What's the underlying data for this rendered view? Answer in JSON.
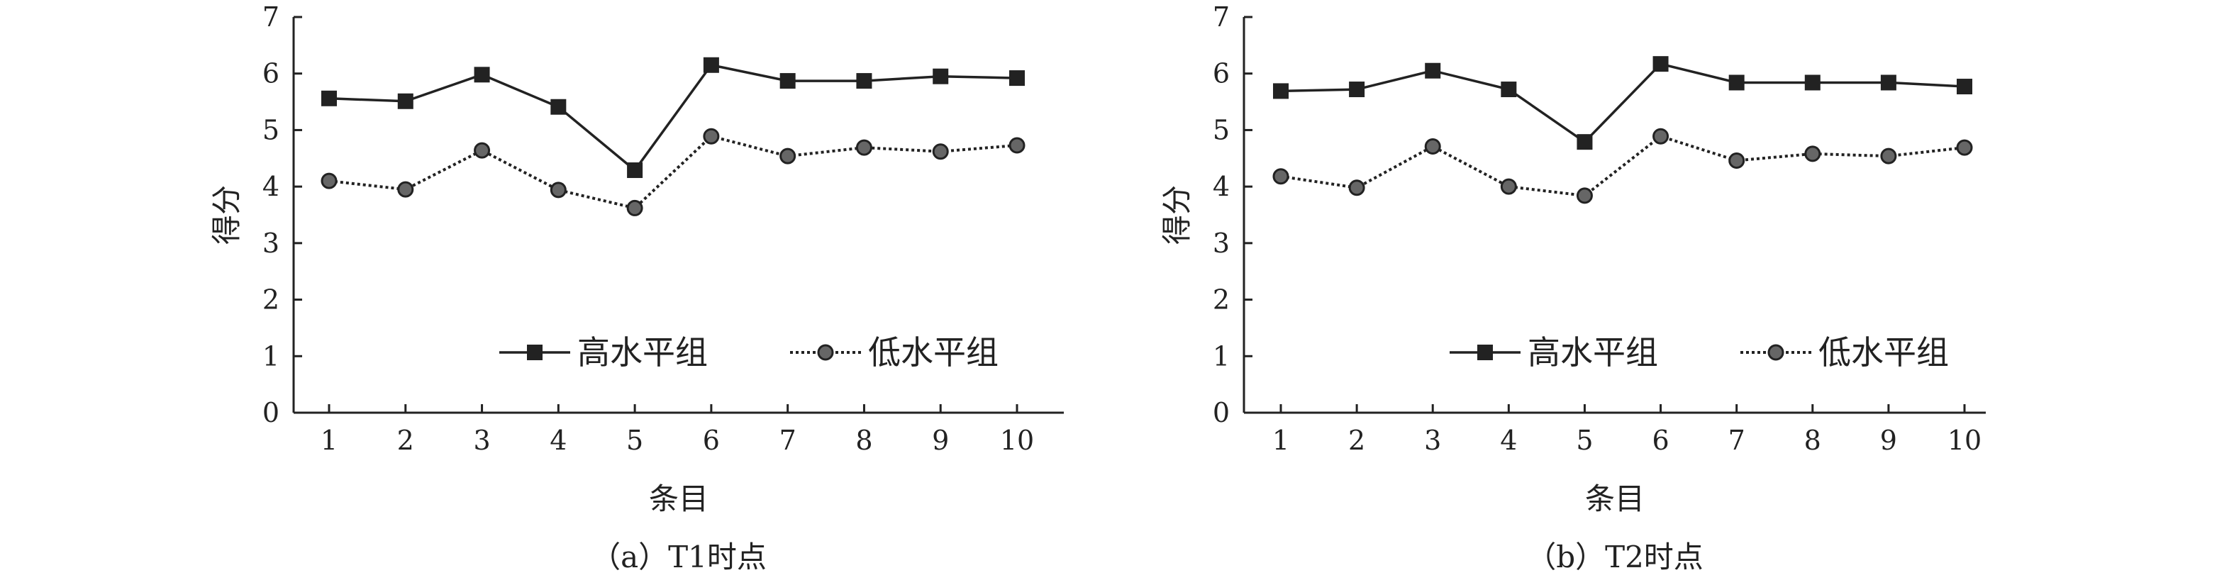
{
  "chart_data": [
    {
      "type": "line",
      "caption": "（a）T1时点",
      "xlabel": "条目",
      "ylabel": "得分",
      "x": [
        1,
        2,
        3,
        4,
        5,
        6,
        7,
        8,
        9,
        10
      ],
      "xticks": [
        "1",
        "2",
        "3",
        "4",
        "5",
        "6",
        "7",
        "8",
        "9",
        "10"
      ],
      "yticks": [
        "0",
        "1",
        "2",
        "3",
        "4",
        "5",
        "6",
        "7"
      ],
      "ylim": [
        0,
        7
      ],
      "grid": false,
      "legend_placement": "bottom-right",
      "series": [
        {
          "name": "高水平组",
          "style": "solid-square",
          "values": [
            5.56,
            5.51,
            5.98,
            5.41,
            4.29,
            6.15,
            5.87,
            5.87,
            5.95,
            5.92
          ]
        },
        {
          "name": "低水平组",
          "style": "dotted-circle",
          "values": [
            4.1,
            3.95,
            4.64,
            3.94,
            3.62,
            4.89,
            4.54,
            4.69,
            4.62,
            4.73
          ]
        }
      ]
    },
    {
      "type": "line",
      "caption": "（b）T2时点",
      "xlabel": "条目",
      "ylabel": "得分",
      "x": [
        1,
        2,
        3,
        4,
        5,
        6,
        7,
        8,
        9,
        10
      ],
      "xticks": [
        "1",
        "2",
        "3",
        "4",
        "5",
        "6",
        "7",
        "8",
        "9",
        "10"
      ],
      "yticks": [
        "0",
        "1",
        "2",
        "3",
        "4",
        "5",
        "6",
        "7"
      ],
      "ylim": [
        0,
        7
      ],
      "grid": false,
      "legend_placement": "bottom-right",
      "series": [
        {
          "name": "高水平组",
          "style": "solid-square",
          "values": [
            5.69,
            5.72,
            6.05,
            5.72,
            4.79,
            6.17,
            5.84,
            5.84,
            5.84,
            5.77
          ]
        },
        {
          "name": "低水平组",
          "style": "dotted-circle",
          "values": [
            4.18,
            3.98,
            4.71,
            4.0,
            3.84,
            4.89,
            4.46,
            4.58,
            4.54,
            4.69
          ]
        }
      ]
    }
  ],
  "colors": {
    "axis": "#222222",
    "high_marker": "#222222",
    "low_marker": "#666666"
  }
}
